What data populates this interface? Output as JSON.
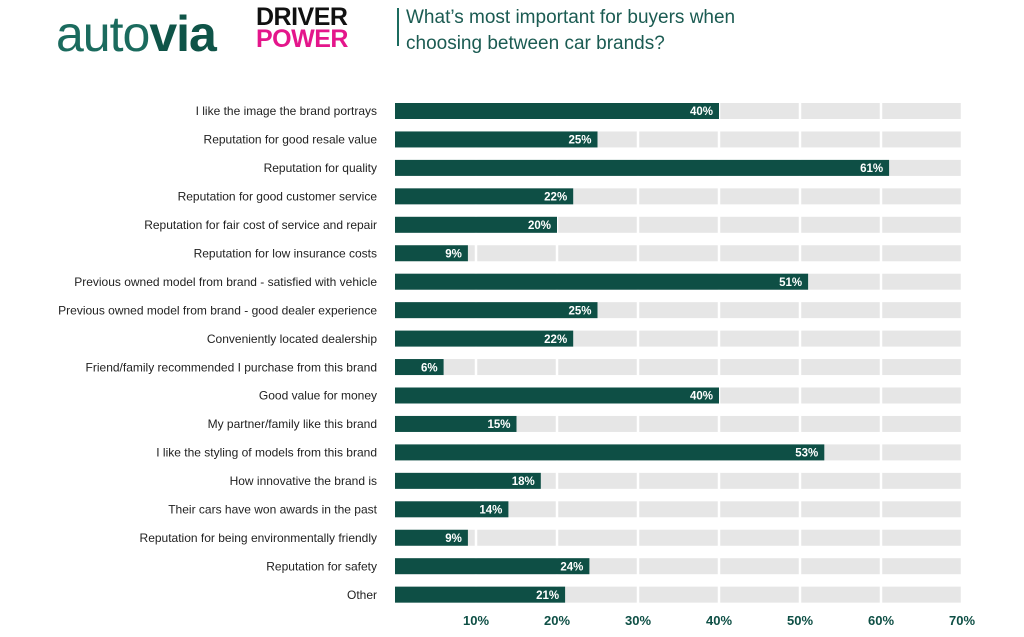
{
  "brand": {
    "autovia_thin": "auto",
    "autovia_bold": "via",
    "dp_line1": "DRIVER",
    "dp_line2": "POWER"
  },
  "title_lines": [
    "What’s most important for buyers when",
    "choosing between car brands?"
  ],
  "colors": {
    "bar": "#0e4f45",
    "band": "#e6e6e6",
    "tick_label": "#0e4f45",
    "category_label": "#222222",
    "value_label": "#ffffff"
  },
  "chart_data": {
    "type": "bar",
    "orientation": "horizontal",
    "title": "What’s most important for buyers when choosing between car brands?",
    "categories": [
      "I like the image the brand portrays",
      "Reputation for good resale value",
      "Reputation for quality",
      "Reputation for good customer service",
      "Reputation for fair cost of service and repair",
      "Reputation for low insurance costs",
      "Previous owned model from brand - satisfied with vehicle",
      "Previous owned model from brand - good dealer experience",
      "Conveniently located dealership",
      "Friend/family recommended I purchase from this brand",
      "Good value for money",
      "My partner/family like this brand",
      "I like the styling of models from this brand",
      "How innovative the brand is",
      "Their cars have won awards in the past",
      "Reputation for being environmentally friendly",
      "Reputation for safety",
      "Other"
    ],
    "values": [
      40,
      25,
      61,
      22,
      20,
      9,
      51,
      25,
      22,
      6,
      40,
      15,
      53,
      18,
      14,
      9,
      24,
      21
    ],
    "value_labels": [
      "40%",
      "25%",
      "61%",
      "22%",
      "20%",
      "9%",
      "51%",
      "25%",
      "22%",
      "6%",
      "40%",
      "15%",
      "53%",
      "18%",
      "14%",
      "9%",
      "24%",
      "21%"
    ],
    "x_ticks": [
      10,
      20,
      30,
      40,
      50,
      60,
      70
    ],
    "x_tick_labels": [
      "10%",
      "20%",
      "30%",
      "40%",
      "50%",
      "60%",
      "70%"
    ],
    "xlim": [
      0,
      70
    ],
    "grid": true,
    "legend": "none"
  }
}
